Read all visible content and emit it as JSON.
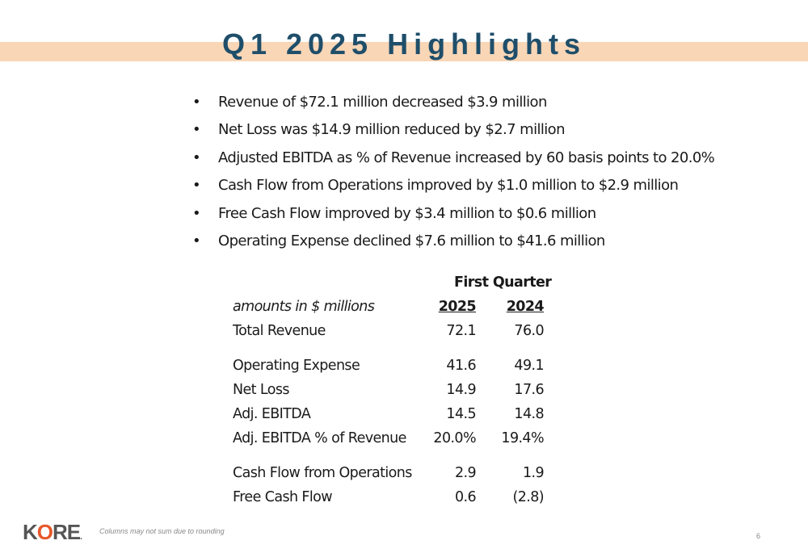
{
  "slide": {
    "title": "Q1 2025 Highlights",
    "page_number": "6",
    "footnote": "Columns may not sum due to rounding",
    "colors": {
      "title": "#1f4e6a",
      "title_band": "#f9d6b6",
      "logo_accent": "#e8572a"
    }
  },
  "bullets": [
    "Revenue of $72.1 million decreased $3.9 million",
    "Net Loss was $14.9 million reduced by $2.7 million",
    "Adjusted EBITDA as % of Revenue increased by 60 basis points to 20.0%",
    "Cash Flow from Operations improved by $1.0 million to $2.9 million",
    "Free Cash Flow improved by $3.4 million to $0.6 million",
    "Operating Expense declined $7.6 million to $41.6 million"
  ],
  "table": {
    "group_header": "First Quarter",
    "units_label": "amounts in $ millions",
    "col_a": "2025",
    "col_b": "2024",
    "rows": [
      {
        "label": "Total Revenue",
        "a": "72.1",
        "b": "76.0"
      },
      {
        "label": "Operating Expense",
        "a": "41.6",
        "b": "49.1"
      },
      {
        "label": "Net Loss",
        "a": "14.9",
        "b": "17.6"
      },
      {
        "label": "Adj. EBITDA",
        "a": "14.5",
        "b": "14.8"
      },
      {
        "label": "Adj. EBITDA % of Revenue",
        "a": "20.0%",
        "b": "19.4%"
      },
      {
        "label": "Cash Flow from Operations",
        "a": "2.9",
        "b": "1.9"
      },
      {
        "label": "Free Cash Flow",
        "a": "0.6",
        "b": "(2.8)"
      }
    ]
  },
  "logo": {
    "text_1": "K",
    "text_2": "O",
    "text_3": "RE",
    "suffix": "."
  }
}
